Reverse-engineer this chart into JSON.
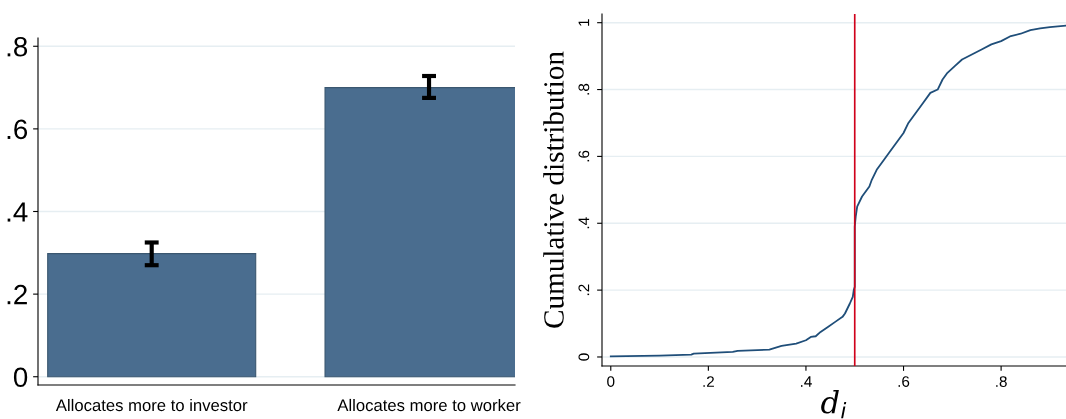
{
  "chart_data": [
    {
      "type": "bar",
      "categories": [
        "Allocates more to investor",
        "Allocates more to worker"
      ],
      "values": [
        0.298,
        0.7
      ],
      "errors": [
        [
          0.27,
          0.325
        ],
        [
          0.675,
          0.728
        ]
      ],
      "color": "#4a6d8f",
      "ylim": [
        -0.02,
        0.82
      ],
      "yticks": [
        {
          "value": 0,
          "label": "0"
        },
        {
          "value": 0.2,
          "label": ".2"
        },
        {
          "value": 0.4,
          "label": ".4"
        },
        {
          "value": 0.6,
          "label": ".6"
        },
        {
          "value": 0.8,
          "label": ".8"
        }
      ],
      "grid": "y"
    },
    {
      "type": "line",
      "xlabel": "d$_{i}$",
      "ylabel": "Cumulative distribution",
      "color": "#1f4e79",
      "grid": "y",
      "xlim": [
        -0.018,
        0.933
      ],
      "ylim": [
        -0.027,
        1.026
      ],
      "xticks": [
        {
          "value": 0,
          "label": "0"
        },
        {
          "value": 0.2,
          "label": ".2"
        },
        {
          "value": 0.4,
          "label": ".4"
        },
        {
          "value": 0.6,
          "label": ".6"
        },
        {
          "value": 0.8,
          "label": ".8"
        }
      ],
      "yticks": [
        {
          "value": 0,
          "label": "0"
        },
        {
          "value": 0.2,
          "label": ".2"
        },
        {
          "value": 0.4,
          "label": ".4"
        },
        {
          "value": 0.6,
          "label": ".6"
        },
        {
          "value": 0.8,
          "label": ".8"
        },
        {
          "value": 1,
          "label": "1"
        }
      ],
      "ref_lines": [
        {
          "axis": "x",
          "value": 0.5,
          "color": "#d0021b"
        }
      ],
      "x": [
        0,
        0.1,
        0.165,
        0.17,
        0.25,
        0.26,
        0.325,
        0.35,
        0.38,
        0.4,
        0.41,
        0.42,
        0.43,
        0.445,
        0.46,
        0.475,
        0.48,
        0.49,
        0.496,
        0.498,
        0.5,
        0.5,
        0.502,
        0.505,
        0.515,
        0.53,
        0.535,
        0.545,
        0.56,
        0.57,
        0.585,
        0.6,
        0.61,
        0.625,
        0.64,
        0.655,
        0.67,
        0.68,
        0.69,
        0.705,
        0.72,
        0.74,
        0.76,
        0.78,
        0.8,
        0.82,
        0.84,
        0.86,
        0.88,
        0.9,
        0.933
      ],
      "values": [
        0.002,
        0.004,
        0.007,
        0.01,
        0.015,
        0.018,
        0.022,
        0.033,
        0.04,
        0.05,
        0.06,
        0.062,
        0.075,
        0.09,
        0.105,
        0.12,
        0.13,
        0.16,
        0.18,
        0.2,
        0.21,
        0.39,
        0.42,
        0.45,
        0.48,
        0.51,
        0.53,
        0.56,
        0.59,
        0.61,
        0.64,
        0.67,
        0.7,
        0.73,
        0.76,
        0.79,
        0.8,
        0.83,
        0.85,
        0.87,
        0.89,
        0.905,
        0.92,
        0.935,
        0.945,
        0.96,
        0.967,
        0.978,
        0.983,
        0.987,
        0.991
      ]
    }
  ]
}
